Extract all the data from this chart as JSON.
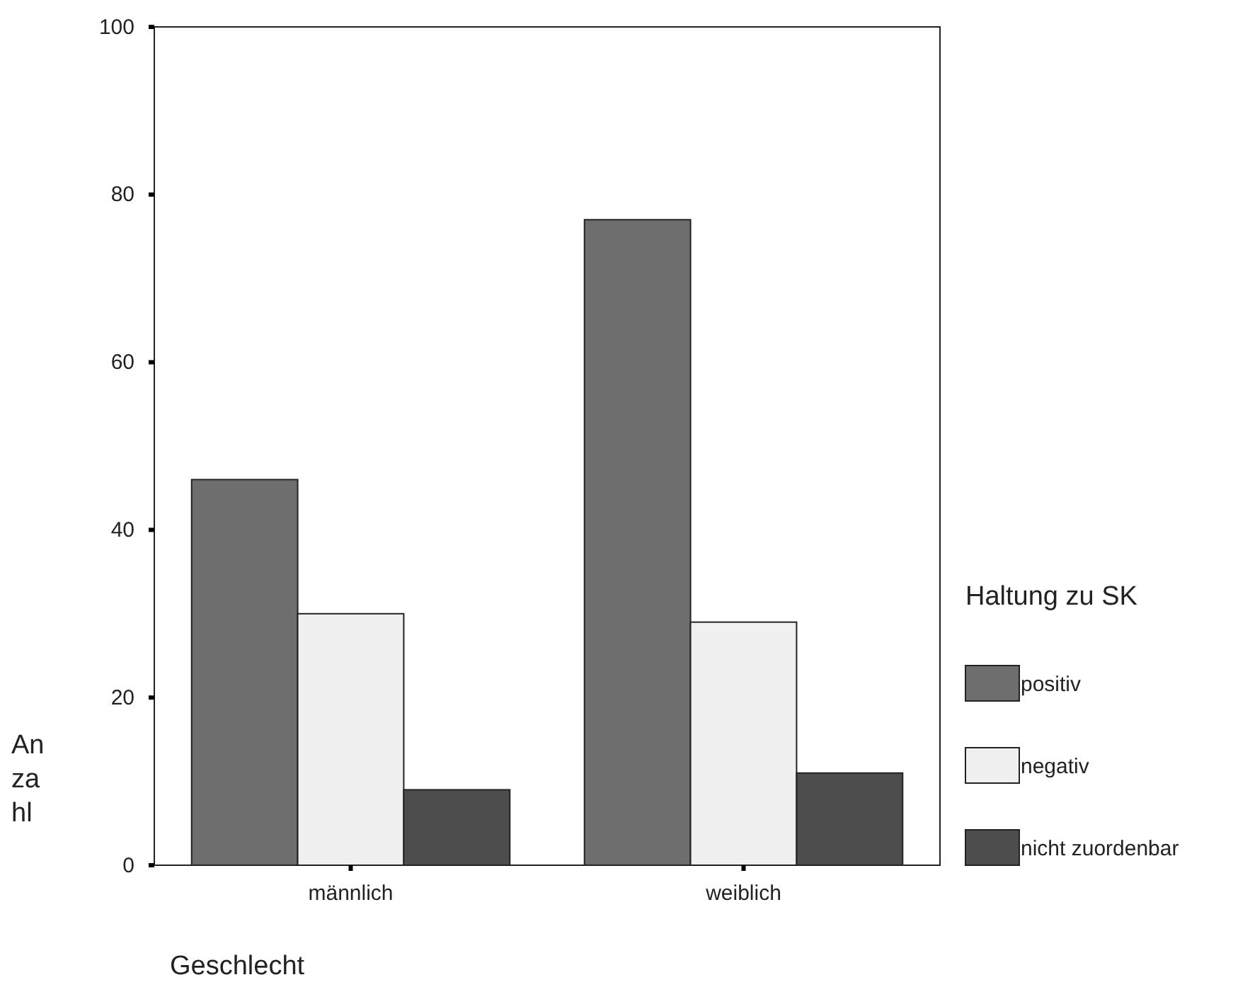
{
  "chart_data": {
    "type": "bar",
    "xlabel": "Geschlecht",
    "ylabel": "Anzahl",
    "legend_title": "Haltung zu SK",
    "categories": [
      "männlich",
      "weiblich"
    ],
    "series": [
      {
        "name": "positiv",
        "color": "#6e6e6e",
        "values": [
          46,
          77
        ]
      },
      {
        "name": "negativ",
        "color": "#f0f0f0",
        "values": [
          30,
          29
        ]
      },
      {
        "name": "nicht zuordenbar",
        "color": "#4d4d4d",
        "values": [
          9,
          11
        ]
      }
    ],
    "ylim": [
      0,
      100
    ],
    "yticks": [
      0,
      20,
      40,
      60,
      80,
      100
    ],
    "grid": false,
    "legend": "right"
  }
}
